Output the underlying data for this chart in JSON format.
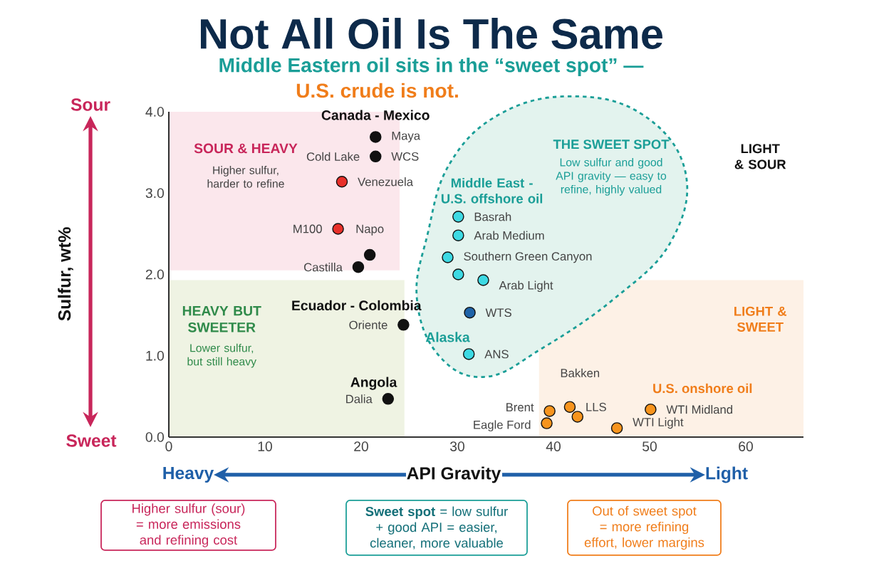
{
  "chart_data": {
    "type": "scatter",
    "title": "Not All Oil Is The Same",
    "subtitle": "Middle Eastern oil sits in the “sweet spot” —",
    "xlabel": "API Gravity",
    "ylabel": "Sulfur, wt%",
    "x": [
      21.5,
      21.5,
      18.0,
      17.6,
      20.9,
      19.7,
      24.4,
      22.8,
      30.1,
      30.1,
      29.0,
      30.1,
      32.7,
      31.3,
      31.2,
      39.6,
      39.3,
      42.5,
      41.7,
      50.1,
      46.6
    ],
    "values": [
      3.69,
      3.45,
      3.14,
      2.56,
      2.24,
      2.09,
      1.38,
      0.47,
      2.71,
      2.48,
      2.21,
      2.0,
      1.93,
      1.53,
      1.02,
      0.32,
      0.17,
      0.25,
      0.37,
      0.34,
      0.11
    ],
    "colors": [
      "#111111",
      "#111111",
      "#e8302a",
      "#e8302a",
      "#111111",
      "#111111",
      "#111111",
      "#111111",
      "#3dd9e3",
      "#3dd9e3",
      "#3dd9e3",
      "#3dd9e3",
      "#3dd9e3",
      "#1f63a8",
      "#3dd9e3",
      "#f7941d",
      "#f7941d",
      "#f7941d",
      "#f7941d",
      "#f7941d",
      "#f7941d"
    ],
    "value_labels": [
      "Maya",
      "WCS",
      "Venezuela",
      "M100",
      "Napo",
      "Castilla",
      "Oriente",
      "Dalia",
      "Basrah",
      "Arab Medium",
      "Southern Green Canyon",
      null,
      "Arab Light",
      "WTS",
      "ANS",
      "Brent",
      "Eagle Ford",
      "Bakken",
      "LLS",
      "WTI Midland",
      "WTI Light"
    ],
    "marker": "circle",
    "xlim": [
      0,
      66
    ],
    "ylim": [
      0,
      4
    ],
    "xticks": [
      0,
      10,
      20,
      30,
      40,
      50,
      60
    ],
    "yticks": [
      {
        "value": 0,
        "label": "0.0"
      },
      {
        "value": 1,
        "label": "1.0"
      },
      {
        "value": 2,
        "label": "2.0"
      },
      {
        "value": 3,
        "label": "3.0"
      },
      {
        "value": 4,
        "label": "4.0"
      }
    ],
    "annotations": [
      "Canada - Mexico",
      {
        "text": "Cold Lake",
        "x": 21.5,
        "y": 3.45
      },
      "SOUR & HEAVY",
      "Higher sulfur, harder to refine",
      "Middle East - U.S. offshore oil",
      "THE SWEET SPOT",
      "Low sulfur and good API gravity — easy to refine, highly valued",
      "LIGHT & SOUR",
      "Ecuador - Colombia",
      "HEAVY BUT SWEETER",
      "Lower sulfur, but still heavy",
      "Alaska",
      "LIGHT & SWEET",
      "U.S. onshore oil",
      "Angola",
      "U.S. crude is not.",
      "Sour",
      "Sweet",
      "Heavy",
      "Light",
      "Higher sulfur (sour) = more emissions and refining cost",
      "**Sweet spot** = low sulfur + good API = easier, cleaner, more valuable",
      "Out of sweet spot = more refining effort, lower margins"
    ]
  }
}
